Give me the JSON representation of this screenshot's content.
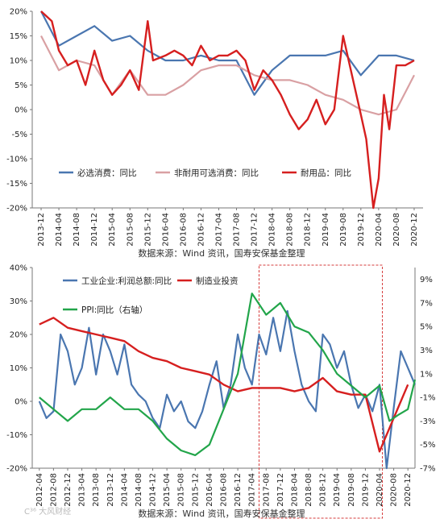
{
  "colors": {
    "blue": "#4a76b0",
    "pink": "#d9a0a3",
    "red": "#d61f1f",
    "green": "#22a54a",
    "highlight_box": "#d63b3b"
  },
  "chart_data": [
    {
      "type": "line",
      "grid": false,
      "legend": "bottom",
      "ylim": [
        -20,
        20
      ],
      "yticks": [
        "20%",
        "15%",
        "10%",
        "5%",
        "0%",
        "-5%",
        "-10%",
        "-15%",
        "-20%"
      ],
      "xticks": [
        "2013-12",
        "2014-04",
        "2014-08",
        "2014-12",
        "2015-04",
        "2015-08",
        "2015-12",
        "2016-04",
        "2016-08",
        "2016-12",
        "2017-04",
        "2017-08",
        "2017-12",
        "2018-04",
        "2018-08",
        "2018-12",
        "2019-04",
        "2019-08",
        "2019-12",
        "2020-04",
        "2020-08",
        "2020-12"
      ],
      "series": [
        {
          "name": "必选消费：同比",
          "color": "blue",
          "x": [
            0,
            1,
            2,
            3,
            4,
            5,
            6,
            7,
            8,
            9,
            10,
            11,
            12,
            13,
            14,
            15,
            16,
            17,
            18,
            19,
            20,
            21
          ],
          "values": [
            20,
            13,
            15,
            17,
            14,
            15,
            12,
            10,
            10,
            11,
            10,
            10,
            3,
            8,
            11,
            11,
            11,
            12,
            7,
            11,
            11,
            10
          ]
        },
        {
          "name": "非耐用可选消费：同比",
          "color": "pink",
          "x": [
            0,
            1,
            2,
            3,
            4,
            5,
            6,
            7,
            8,
            9,
            10,
            11,
            12,
            13,
            14,
            15,
            16,
            17,
            18,
            19,
            20,
            21
          ],
          "values": [
            15,
            8,
            10,
            9,
            3,
            8,
            3,
            3,
            5,
            8,
            9,
            9,
            7,
            6,
            6,
            5,
            3,
            2,
            0,
            -1,
            0,
            7
          ]
        },
        {
          "name": "耐用品：同比",
          "color": "red",
          "x": [
            0,
            0.6,
            1,
            1.5,
            2,
            2.5,
            3,
            3.5,
            4,
            4.5,
            5,
            5.5,
            6,
            6.3,
            7,
            7.5,
            8,
            8.5,
            9,
            9.5,
            10,
            10.5,
            11,
            11.5,
            12,
            12.5,
            13,
            13.5,
            14,
            14.5,
            15,
            15.5,
            16,
            16.5,
            17,
            17.5,
            18,
            18.3,
            18.7,
            19,
            19.3,
            19.6,
            20,
            20.5,
            21
          ],
          "values": [
            20,
            18,
            12,
            9,
            10,
            5,
            12,
            6,
            3,
            5,
            8,
            4,
            18,
            10,
            11,
            12,
            11,
            9,
            13,
            10,
            11,
            11,
            12,
            10,
            4,
            8,
            6,
            3,
            -1,
            -4,
            -2,
            2,
            -3,
            0,
            15,
            7,
            -1,
            -6,
            -20,
            -14,
            3,
            -4,
            9,
            9,
            10
          ]
        }
      ]
    },
    {
      "type": "line",
      "grid": false,
      "legend": "top-left",
      "ylim": [
        -20,
        40
      ],
      "yticks": [
        "40%",
        "30%",
        "20%",
        "10%",
        "0%",
        "-10%",
        "-20%"
      ],
      "y2lim": [
        -7,
        10
      ],
      "y2ticks": [
        "9%",
        "7%",
        "5%",
        "3%",
        "1%",
        "-1%",
        "-3%",
        "-5%",
        "-7%"
      ],
      "xticks": [
        "2012-04",
        "2012-08",
        "2012-12",
        "2013-04",
        "2013-08",
        "2013-12",
        "2014-04",
        "2014-08",
        "2014-12",
        "2015-04",
        "2015-08",
        "2015-12",
        "2016-04",
        "2016-08",
        "2016-12",
        "2017-04",
        "2017-08",
        "2017-12",
        "2018-04",
        "2018-08",
        "2018-12",
        "2019-04",
        "2019-08",
        "2019-12",
        "2020-04",
        "2020-08",
        "2020-12"
      ],
      "highlight": {
        "x_from": 15.5,
        "x_to": 24.2
      },
      "series": [
        {
          "name": "工业企业:利润总额:同比",
          "color": "blue",
          "axis": "left",
          "x": [
            0,
            0.5,
            1,
            1.5,
            2,
            2.5,
            3,
            3.5,
            4,
            4.5,
            5,
            5.5,
            6,
            6.5,
            7,
            7.5,
            8,
            8.5,
            9,
            9.5,
            10,
            10.5,
            11,
            11.5,
            12,
            12.5,
            13,
            13.5,
            14,
            14.5,
            15,
            15.5,
            16,
            16.5,
            17,
            17.5,
            18,
            18.5,
            19,
            19.5,
            20,
            20.5,
            21,
            21.5,
            22,
            22.5,
            23,
            23.5,
            24,
            24.5,
            25,
            25.5,
            26,
            26.5
          ],
          "values": [
            0,
            -5,
            -3,
            20,
            15,
            5,
            10,
            22,
            8,
            20,
            15,
            8,
            17,
            5,
            2,
            0,
            -5,
            -8,
            2,
            -3,
            0,
            -6,
            -8,
            -3,
            5,
            12,
            -2,
            5,
            20,
            10,
            5,
            20,
            14,
            25,
            15,
            27,
            15,
            5,
            0,
            -3,
            20,
            17,
            10,
            15,
            5,
            -2,
            2,
            -3,
            5,
            -20,
            -2,
            15,
            10,
            5
          ]
        },
        {
          "name": "制造业投资",
          "color": "red",
          "axis": "left",
          "x": [
            0,
            1,
            2,
            3,
            4,
            5,
            6,
            7,
            8,
            9,
            10,
            11,
            12,
            13,
            14,
            15,
            16,
            17,
            18,
            19,
            20,
            21,
            22,
            23,
            24,
            25,
            26
          ],
          "values": [
            23,
            25,
            22,
            21,
            20,
            19,
            18,
            15,
            13,
            12,
            10,
            9,
            8,
            5,
            3,
            4,
            4,
            4,
            3,
            4,
            7,
            3,
            2,
            2,
            -15,
            -5,
            5
          ]
        },
        {
          "name": "PPI:同比（右轴）",
          "color": "green",
          "axis": "right",
          "x": [
            0,
            1,
            2,
            3,
            4,
            5,
            6,
            7,
            8,
            9,
            10,
            11,
            12,
            13,
            14,
            15,
            16,
            17,
            18,
            19,
            20,
            21,
            22,
            23,
            24,
            24.7,
            25.3,
            26,
            26.5
          ],
          "values": [
            -1,
            -2,
            -3,
            -2,
            -2,
            -1,
            -2,
            -2,
            -3,
            -4.5,
            -5.5,
            -5.9,
            -5,
            -2,
            1,
            7.8,
            6,
            7,
            5,
            4.5,
            3,
            1,
            0,
            -1,
            0,
            -3,
            -2.5,
            -2,
            0.5
          ]
        }
      ]
    }
  ],
  "source_text": "数据来源：Wind 资讯，国寿安保基金整理",
  "watermark": "C³⁶ 大风财经"
}
